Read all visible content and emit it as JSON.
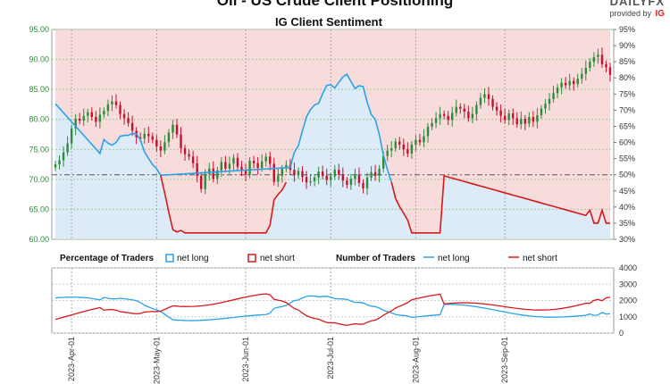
{
  "header": {
    "title": "Oil - US Crude Client Positioning",
    "brand_mark": "DAILYFX",
    "brand_provided": "provided by",
    "brand_ig": "IG"
  },
  "colors": {
    "long": "#29a3e8",
    "short": "#d7191c",
    "candle_up": "#2e8b3a",
    "candle_down": "#c8102e",
    "long_fill": "#dcebf7",
    "short_fill": "#f8dcdc",
    "axis_left": "#2e8b3a"
  },
  "chart_data": [
    {
      "type": "candlestick",
      "title": "IG Client Sentiment",
      "y_left_ticks": [
        "95.00",
        "90.00",
        "85.00",
        "80.00",
        "75.00",
        "70.00",
        "65.00",
        "60.00"
      ],
      "y_left_range": [
        60,
        95
      ],
      "y_right_ticks": [
        "95%",
        "90%",
        "85%",
        "80%",
        "75%",
        "70%",
        "65%",
        "60%",
        "55%",
        "50%",
        "45%",
        "40%",
        "35%",
        "30%"
      ],
      "y_right_range": [
        30,
        95
      ],
      "reference_line_pct": 50,
      "price_close": [
        72.5,
        73.2,
        74.5,
        76.0,
        78.5,
        80.1,
        79.8,
        80.6,
        81.2,
        80.4,
        79.6,
        80.8,
        81.4,
        82.5,
        83.0,
        82.4,
        80.9,
        80.2,
        79.4,
        78.1,
        77.0,
        76.8,
        77.6,
        77.2,
        76.6,
        75.5,
        74.8,
        76.2,
        77.8,
        79.1,
        77.5,
        75.2,
        74.2,
        73.8,
        72.7,
        70.6,
        68.4,
        70.9,
        71.8,
        70.1,
        71.5,
        72.9,
        71.8,
        72.6,
        73.6,
        72.1,
        71.4,
        70.8,
        73.1,
        72.7,
        71.9,
        73.0,
        73.8,
        72.6,
        69.6,
        70.6,
        71.8,
        72.4,
        71.6,
        70.7,
        71.4,
        70.4,
        69.5,
        69.7,
        70.3,
        71.3,
        70.6,
        69.9,
        70.5,
        71.6,
        70.8,
        69.8,
        69.1,
        70.1,
        70.8,
        69.4,
        68.5,
        70.3,
        71.2,
        70.6,
        71.8,
        73.9,
        74.8,
        75.2,
        76.3,
        75.8,
        75.0,
        74.3,
        75.8,
        76.6,
        76.2,
        77.2,
        78.8,
        79.4,
        80.2,
        80.9,
        80.6,
        79.9,
        81.1,
        82.1,
        81.8,
        81.3,
        80.2,
        80.9,
        82.4,
        83.6,
        84.2,
        83.4,
        82.1,
        81.5,
        80.6,
        79.9,
        81.0,
        80.2,
        79.2,
        80.1,
        79.3,
        80.4,
        79.6,
        80.7,
        81.8,
        82.6,
        83.4,
        84.4,
        85.3,
        86.1,
        85.7,
        86.4,
        85.9,
        86.8,
        87.6,
        88.6,
        89.6,
        90.4,
        90.8,
        89.2,
        88.7,
        87.4
      ],
      "long_pct_start": 72,
      "short_pct_end": 35,
      "x_tick_labels": [
        "2023-Apr-01",
        "2023-May-01",
        "2023-Jun-01",
        "2023-Jul-01",
        "2023-Aug-01",
        "2023-Sep-01"
      ]
    },
    {
      "type": "line",
      "legend_left_title": "Percentage of Traders",
      "legend_left_long": "net long",
      "legend_left_short": "net short",
      "legend_right_title": "Number of Traders",
      "legend_right_long": "net long",
      "legend_right_short": "net short",
      "y_right_ticks": [
        "4000",
        "3000",
        "2000",
        "1000",
        "0"
      ],
      "y_range": [
        0,
        4000
      ],
      "x_tick_labels": [
        "2023-Apr-01",
        "2023-May-01",
        "2023-Jun-01",
        "2023-Jul-01",
        "2023-Aug-01",
        "2023-Sep-01"
      ]
    }
  ]
}
